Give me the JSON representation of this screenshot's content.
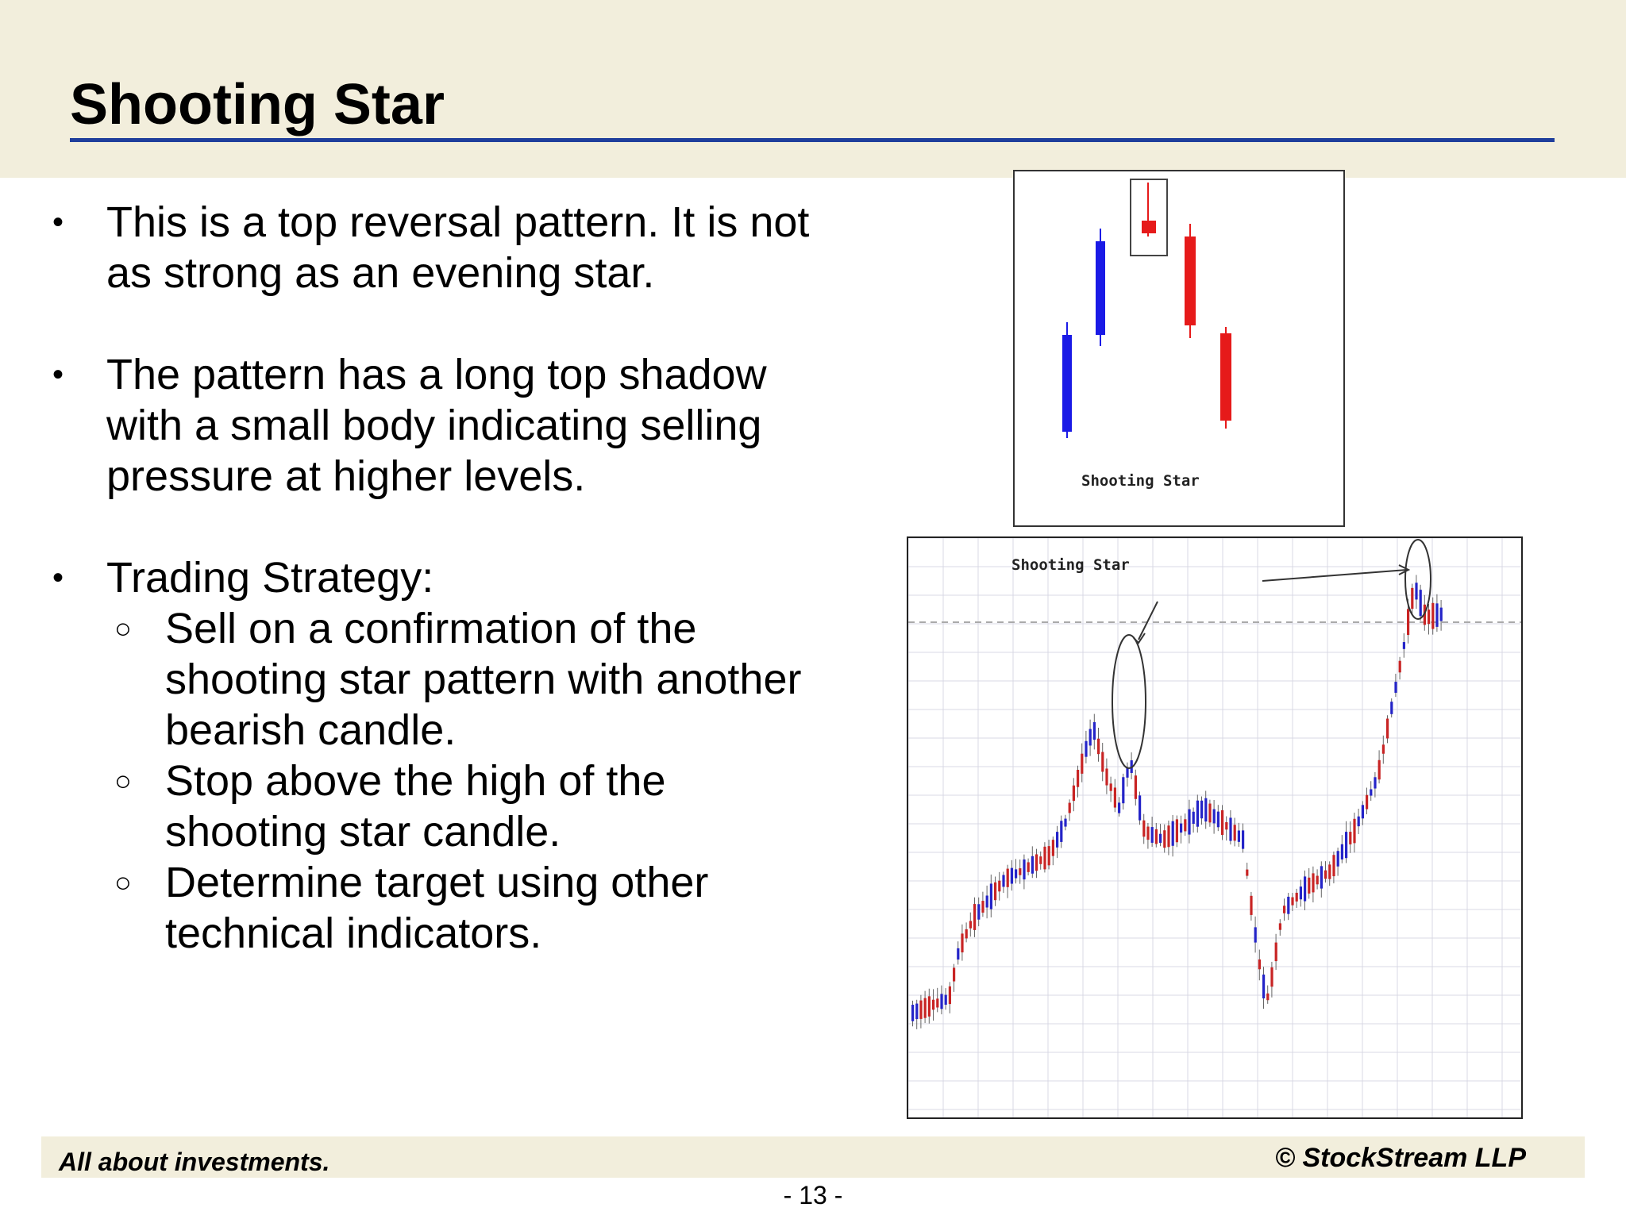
{
  "slide": {
    "title": "Shooting Star",
    "footer_left": "All about investments.",
    "footer_right": "© StockStream LLP",
    "page_number": "- 13 -"
  },
  "bullets": [
    {
      "text_lines": [
        "This is a top reversal pattern. It is not",
        "as strong as an evening star."
      ]
    },
    {
      "text_lines": [
        "The pattern has a long top shadow",
        "with a small body indicating selling",
        "pressure at higher levels."
      ]
    },
    {
      "text_lines": [
        "Trading Strategy:"
      ],
      "sub_items": [
        {
          "text_lines": [
            "Sell on a confirmation of the",
            "shooting star pattern with another",
            "bearish candle."
          ]
        },
        {
          "text_lines": [
            "Stop above the high of the",
            "shooting star candle."
          ]
        },
        {
          "text_lines": [
            "Determine target using other",
            "technical indicators."
          ]
        }
      ]
    }
  ],
  "figures": {
    "pattern_diagram_label": "Shooting Star",
    "price_chart_label": "Shooting Star"
  },
  "colors": {
    "title_rule": "#1f3e9c",
    "band": "#f2eedc",
    "bullish_candle": "#1a1ae6",
    "bearish_candle": "#e61a1a"
  }
}
